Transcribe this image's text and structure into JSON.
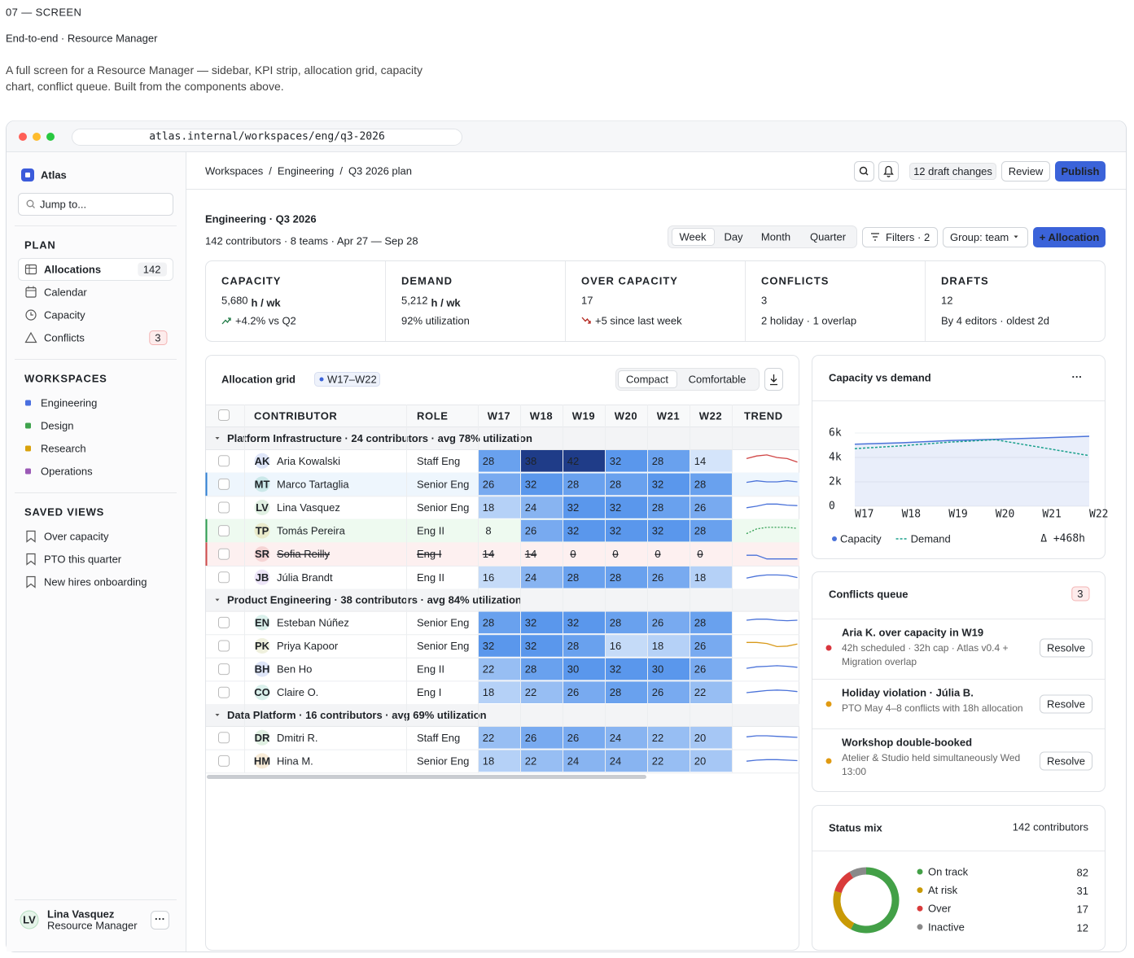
{
  "header": {
    "eyebrow": "07 — SCREEN",
    "title": "End-to-end · Resource Manager",
    "description": "A full screen for a Resource Manager — sidebar, KPI strip, allocation grid, capacity chart, conflict queue. Built from the components above."
  },
  "browser": {
    "url": "atlas.internal/workspaces/eng/q3-2026"
  },
  "sidebar": {
    "brand": "Atlas",
    "search_placeholder": "Jump to...",
    "sections": [
      {
        "title": "PLAN",
        "items": [
          {
            "label": "Allocations",
            "count": 142,
            "active": true
          },
          {
            "label": "Calendar"
          },
          {
            "label": "Capacity"
          },
          {
            "label": "Conflicts",
            "count": 3,
            "alert": true
          }
        ]
      },
      {
        "title": "WORKSPACES",
        "items": [
          {
            "label": "Engineering",
            "color": "#4a6fe0"
          },
          {
            "label": "Design",
            "color": "#3fa34d"
          },
          {
            "label": "Research",
            "color": "#d9a20b"
          },
          {
            "label": "Operations",
            "color": "#9b59b6"
          }
        ]
      },
      {
        "title": "SAVED VIEWS",
        "items": [
          {
            "label": "Over capacity"
          },
          {
            "label": "PTO this quarter"
          },
          {
            "label": "New hires onboarding"
          }
        ]
      }
    ],
    "user": {
      "initials": "LV",
      "name": "Lina Vasquez",
      "role": "Resource Manager",
      "menu": "···"
    }
  },
  "topbar": {
    "breadcrumbs": [
      "Workspaces",
      "Engineering",
      "Q3 2026 plan"
    ],
    "separator": "/",
    "drafts": "12 draft changes",
    "review": "Review",
    "publish": "Publish"
  },
  "page": {
    "title": "Engineering · Q3 2026",
    "subtitle": "142 contributors · 8 teams · Apr 27 — Sep 28",
    "views": [
      "Week",
      "Day",
      "Month",
      "Quarter"
    ],
    "active_view": "Week",
    "filters": "Filters · 2",
    "group": "Group: team",
    "add": "+ Allocation"
  },
  "kpis": [
    {
      "label": "CAPACITY",
      "value": "5,680",
      "unit": "h / wk",
      "note": "+4.2% vs Q2",
      "trend": "up"
    },
    {
      "label": "DEMAND",
      "value": "5,212",
      "unit": "h / wk",
      "note": "92% utilization"
    },
    {
      "label": "OVER CAPACITY",
      "value": 17,
      "note": "+5 since last week",
      "trend": "down",
      "color": "#a32a22"
    },
    {
      "label": "CONFLICTS",
      "value": 3,
      "note": "2 holiday · 1 overlap",
      "color": "#9a5b12"
    },
    {
      "label": "DRAFTS",
      "value": 12,
      "note": "By 4 editors · oldest 2d"
    }
  ],
  "grid": {
    "title": "Allocation grid",
    "range": "W17–W22",
    "density": [
      "Compact",
      "Comfortable"
    ],
    "columns": [
      "CONTRIBUTOR",
      "ROLE",
      "W17",
      "W18",
      "W19",
      "W20",
      "W21",
      "W22",
      "TREND"
    ],
    "groups": [
      {
        "label": "Platform Infrastructure · 24 contributors · avg 78% utilization",
        "rows": [
          {
            "initials": "AK",
            "name": "Aria Kowalski",
            "role": "Staff Eng",
            "hours": [
              28,
              38,
              42,
              32,
              28,
              14
            ],
            "avatar": "#3b63d9",
            "trend": "#d04545"
          },
          {
            "initials": "MT",
            "name": "Marco Tartaglia",
            "role": "Senior Eng",
            "hours": [
              26,
              32,
              28,
              28,
              32,
              28
            ],
            "avatar": "#16a085",
            "trend": "#4a72d9",
            "state": "selected"
          },
          {
            "initials": "LV",
            "name": "Lina Vasquez",
            "role": "Senior Eng",
            "hours": [
              18,
              24,
              32,
              32,
              28,
              26
            ],
            "avatar": "#3fa34d",
            "trend": "#4a72d9"
          },
          {
            "initials": "TP",
            "name": "Tomás Pereira",
            "role": "Eng II",
            "hours": [
              8,
              26,
              32,
              32,
              32,
              28
            ],
            "avatar": "#d9a20b",
            "trend": "#2e9d4f",
            "state": "added"
          },
          {
            "initials": "SR",
            "name": "Sofia Reilly",
            "role": "Eng I",
            "hours": [
              14,
              14,
              0,
              0,
              0,
              0
            ],
            "avatar": "#d04545",
            "trend": "#4a72d9",
            "state": "removed"
          },
          {
            "initials": "JB",
            "name": "Júlia Brandt",
            "role": "Eng II",
            "hours": [
              16,
              24,
              28,
              28,
              26,
              18
            ],
            "avatar": "#8e5bd6",
            "trend": "#4a72d9"
          }
        ]
      },
      {
        "label": "Product Engineering · 38 contributors · avg 84% utilization",
        "rows": [
          {
            "initials": "EN",
            "name": "Esteban Núñez",
            "role": "Senior Eng",
            "hours": [
              28,
              32,
              32,
              28,
              26,
              28
            ],
            "avatar": "#16a085",
            "trend": "#4a72d9"
          },
          {
            "initials": "PK",
            "name": "Priya Kapoor",
            "role": "Senior Eng",
            "hours": [
              32,
              32,
              28,
              16,
              18,
              26
            ],
            "avatar": "#9aa02b",
            "trend": "#d99a1b"
          },
          {
            "initials": "BH",
            "name": "Ben Ho",
            "role": "Eng II",
            "hours": [
              22,
              28,
              30,
              32,
              30,
              26
            ],
            "avatar": "#3b63d9",
            "trend": "#4a72d9"
          },
          {
            "initials": "CO",
            "name": "Claire O.",
            "role": "Eng I",
            "hours": [
              18,
              22,
              26,
              28,
              26,
              22
            ],
            "avatar": "#16a085",
            "trend": "#4a72d9"
          }
        ]
      },
      {
        "label": "Data Platform · 16 contributors · avg 69% utilization",
        "rows": [
          {
            "initials": "DR",
            "name": "Dmitri R.",
            "role": "Staff Eng",
            "hours": [
              22,
              26,
              26,
              24,
              22,
              20
            ],
            "avatar": "#3fa34d",
            "trend": "#4a72d9"
          },
          {
            "initials": "HM",
            "name": "Hina M.",
            "role": "Senior Eng",
            "hours": [
              18,
              22,
              24,
              24,
              22,
              20
            ],
            "avatar": "#d98a0b",
            "trend": "#4a72d9"
          }
        ]
      }
    ]
  },
  "conflicts": {
    "title": "Conflicts queue",
    "count": 3,
    "items": [
      {
        "title": "Aria K. over capacity in W19",
        "detail": "42h scheduled · 32h cap · Atlas v0.4 + Migration overlap",
        "action": "Resolve",
        "color": "#d9363e"
      },
      {
        "title": "Holiday violation · Júlia B.",
        "detail": "PTO May 4–8 conflicts with 18h allocation",
        "action": "Resolve",
        "color": "#e09a12"
      },
      {
        "title": "Workshop double-booked",
        "detail": "Atelier & Studio held simultaneously Wed 13:00",
        "action": "Resolve",
        "color": "#e09a12"
      }
    ]
  },
  "chart_data": [
    {
      "type": "line",
      "title": "Capacity vs demand",
      "menu": "···",
      "categories": [
        "W17",
        "W18",
        "W19",
        "W20",
        "W21",
        "W22"
      ],
      "series": [
        {
          "name": "Capacity",
          "color": "#4a72d9",
          "values": [
            5080,
            5200,
            5380,
            5480,
            5600,
            5730
          ],
          "area": true
        },
        {
          "name": "Demand",
          "color": "#1aa08c",
          "values": [
            4720,
            4950,
            5250,
            5450,
            4800,
            4150
          ],
          "dashed": true
        }
      ],
      "ylim": [
        0,
        6000
      ],
      "yticks": [
        0,
        {
          "value": 2000,
          "label": "2k"
        },
        {
          "value": 4000,
          "label": "4k"
        },
        {
          "value": 6000,
          "label": "6k"
        }
      ],
      "grid": true,
      "annotation": "Δ +468h"
    },
    {
      "type": "donut",
      "title": "Status mix",
      "subtitle": "142 contributors",
      "categories": [
        "On track",
        "At risk",
        "Over",
        "Inactive"
      ],
      "values": [
        82,
        31,
        17,
        12
      ],
      "colors": [
        "#43a047",
        "#c99a06",
        "#d93b3b",
        "#8a8a8a"
      ]
    }
  ]
}
